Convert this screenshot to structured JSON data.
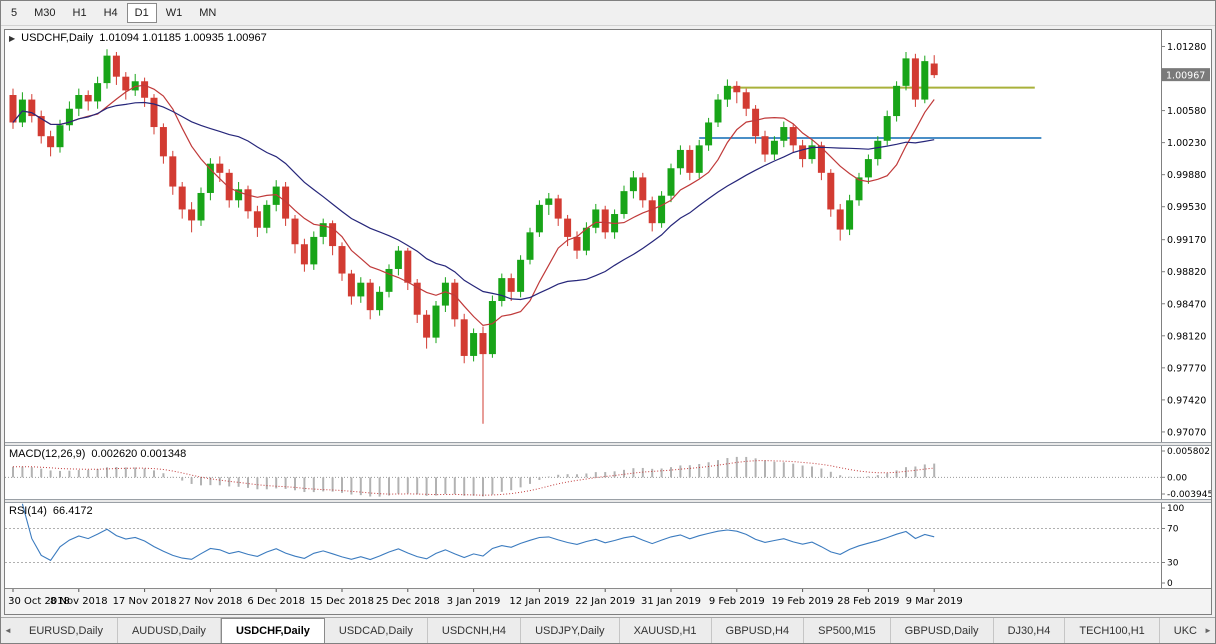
{
  "toolbar": {
    "timeframes": [
      "5",
      "M30",
      "H1",
      "H4",
      "D1",
      "W1",
      "MN"
    ],
    "selected": "D1"
  },
  "chart": {
    "symbol_label": "USDCHF,Daily",
    "ohlc_text": "1.01094 1.01185 1.00935 1.00967"
  },
  "indicators": {
    "macd_label": "MACD(12,26,9)",
    "macd_values": "0.002620 0.001348",
    "rsi_label": "RSI(14)",
    "rsi_value": "66.4172"
  },
  "tabs": {
    "items": [
      "EURUSD,Daily",
      "AUDUSD,Daily",
      "USDCHF,Daily",
      "USDCAD,Daily",
      "USDCNH,H4",
      "USDJPY,Daily",
      "XAUUSD,H1",
      "GBPUSD,H4",
      "SP500,M15",
      "GBPUSD,Daily",
      "DJ30,H4",
      "TECH100,H1",
      "UKC"
    ],
    "active": "USDCHF,Daily"
  },
  "chart_data": {
    "type": "candlestick",
    "symbol": "USDCHF",
    "timeframe": "Daily",
    "current_bar": {
      "open": 1.01094,
      "high": 1.01185,
      "low": 1.00935,
      "close": 1.00967
    },
    "current_price": "1.00967",
    "main_range": [
      0.9696,
      1.0146
    ],
    "y_axis_labels": [
      "1.01280",
      "1.00967",
      "1.00580",
      "1.00230",
      "0.99880",
      "0.99530",
      "0.99170",
      "0.98820",
      "0.98470",
      "0.98120",
      "0.97770",
      "0.97420",
      "0.97070"
    ],
    "x_labels": [
      "30 Oct 2018",
      "8 Nov 2018",
      "17 Nov 2018",
      "27 Nov 2018",
      "6 Dec 2018",
      "15 Dec 2018",
      "25 Dec 2018",
      "3 Jan 2019",
      "12 Jan 2019",
      "22 Jan 2019",
      "31 Jan 2019",
      "9 Feb 2019",
      "19 Feb 2019",
      "28 Feb 2019",
      "9 Mar 2019"
    ],
    "x_label_indices": [
      0,
      7,
      14,
      21,
      28,
      35,
      42,
      49,
      56,
      63,
      70,
      77,
      84,
      91,
      98
    ],
    "colors": {
      "up": "#18a418",
      "down": "#d23b32",
      "ma_fast": "#c03a3a",
      "ma_slow": "#26267a",
      "macd_hist": "#b2b2b2",
      "macd_signal": "#c03a3a",
      "rsi": "#3b7bbf",
      "axis_line": "#808080",
      "price_marker_bg": "#7a7a7a",
      "price_marker_text": "#ffffff"
    },
    "hlines": [
      {
        "price": 1.0083,
        "color": "#a9b13a",
        "start_index": 76,
        "end_index": 108.7
      },
      {
        "price": 1.0028,
        "color": "#4a8fc7",
        "start_index": 73,
        "end_index": 109.4
      }
    ],
    "candles": [
      [
        1.0075,
        1.0082,
        1.0038,
        1.0045
      ],
      [
        1.0045,
        1.0078,
        1.004,
        1.007
      ],
      [
        1.007,
        1.0076,
        1.0045,
        1.0052
      ],
      [
        1.0052,
        1.0058,
        1.0022,
        1.003
      ],
      [
        1.003,
        1.0036,
        1.0008,
        1.0018
      ],
      [
        1.0018,
        1.0048,
        1.0012,
        1.0042
      ],
      [
        1.0042,
        1.0068,
        1.0036,
        1.006
      ],
      [
        1.006,
        1.0082,
        1.0052,
        1.0075
      ],
      [
        1.0075,
        1.008,
        1.0058,
        1.0068
      ],
      [
        1.0068,
        1.0095,
        1.006,
        1.0088
      ],
      [
        1.0088,
        1.0125,
        1.0082,
        1.0118
      ],
      [
        1.0118,
        1.0122,
        1.0086,
        1.0095
      ],
      [
        1.0095,
        1.01,
        1.007,
        1.008
      ],
      [
        1.008,
        1.0098,
        1.0074,
        1.009
      ],
      [
        1.009,
        1.0094,
        1.0062,
        1.0072
      ],
      [
        1.0072,
        1.0076,
        1.0032,
        1.004
      ],
      [
        1.004,
        1.0044,
        1.0,
        1.0008
      ],
      [
        1.0008,
        1.0014,
        0.9966,
        0.9975
      ],
      [
        0.9975,
        0.998,
        0.994,
        0.995
      ],
      [
        0.995,
        0.9958,
        0.9925,
        0.9938
      ],
      [
        0.9938,
        0.9974,
        0.9932,
        0.9968
      ],
      [
        0.9968,
        1.0006,
        0.996,
        1.0
      ],
      [
        1.0,
        1.0008,
        0.998,
        0.999
      ],
      [
        0.999,
        0.9994,
        0.9952,
        0.996
      ],
      [
        0.996,
        0.998,
        0.9952,
        0.9972
      ],
      [
        0.9972,
        0.9976,
        0.994,
        0.9948
      ],
      [
        0.9948,
        0.9954,
        0.992,
        0.993
      ],
      [
        0.993,
        0.996,
        0.9924,
        0.9955
      ],
      [
        0.9955,
        0.9982,
        0.9948,
        0.9975
      ],
      [
        0.9975,
        0.998,
        0.9932,
        0.994
      ],
      [
        0.994,
        0.9944,
        0.9902,
        0.9912
      ],
      [
        0.9912,
        0.9918,
        0.9882,
        0.989
      ],
      [
        0.989,
        0.9926,
        0.9884,
        0.992
      ],
      [
        0.992,
        0.994,
        0.9912,
        0.9935
      ],
      [
        0.9935,
        0.9938,
        0.99,
        0.991
      ],
      [
        0.991,
        0.9914,
        0.9872,
        0.988
      ],
      [
        0.988,
        0.9884,
        0.9846,
        0.9855
      ],
      [
        0.9855,
        0.9876,
        0.9848,
        0.987
      ],
      [
        0.987,
        0.9874,
        0.983,
        0.984
      ],
      [
        0.984,
        0.9866,
        0.9834,
        0.986
      ],
      [
        0.986,
        0.989,
        0.9854,
        0.9885
      ],
      [
        0.9885,
        0.991,
        0.9878,
        0.9905
      ],
      [
        0.9905,
        0.9908,
        0.9862,
        0.987
      ],
      [
        0.987,
        0.9874,
        0.9826,
        0.9835
      ],
      [
        0.9835,
        0.984,
        0.9798,
        0.981
      ],
      [
        0.981,
        0.985,
        0.9804,
        0.9845
      ],
      [
        0.9845,
        0.9876,
        0.9838,
        0.987
      ],
      [
        0.987,
        0.9874,
        0.9822,
        0.983
      ],
      [
        0.983,
        0.9836,
        0.9782,
        0.979
      ],
      [
        0.979,
        0.982,
        0.9784,
        0.9815
      ],
      [
        0.9815,
        0.9822,
        0.9716,
        0.9792
      ],
      [
        0.9792,
        0.9856,
        0.9788,
        0.985
      ],
      [
        0.985,
        0.988,
        0.9844,
        0.9875
      ],
      [
        0.9875,
        0.988,
        0.985,
        0.986
      ],
      [
        0.986,
        0.99,
        0.9854,
        0.9895
      ],
      [
        0.9895,
        0.993,
        0.989,
        0.9925
      ],
      [
        0.9925,
        0.996,
        0.992,
        0.9955
      ],
      [
        0.9955,
        0.9968,
        0.9944,
        0.9962
      ],
      [
        0.9962,
        0.9966,
        0.9932,
        0.994
      ],
      [
        0.994,
        0.9944,
        0.991,
        0.992
      ],
      [
        0.992,
        0.9926,
        0.9896,
        0.9905
      ],
      [
        0.9905,
        0.9936,
        0.99,
        0.993
      ],
      [
        0.993,
        0.9956,
        0.9924,
        0.995
      ],
      [
        0.995,
        0.9954,
        0.9918,
        0.9925
      ],
      [
        0.9925,
        0.995,
        0.9918,
        0.9945
      ],
      [
        0.9945,
        0.9976,
        0.994,
        0.997
      ],
      [
        0.997,
        0.9992,
        0.9962,
        0.9985
      ],
      [
        0.9985,
        0.999,
        0.9952,
        0.996
      ],
      [
        0.996,
        0.9964,
        0.9926,
        0.9935
      ],
      [
        0.9935,
        0.997,
        0.993,
        0.9965
      ],
      [
        0.9965,
        1.0,
        0.9958,
        0.9995
      ],
      [
        0.9995,
        1.002,
        0.9988,
        1.0015
      ],
      [
        1.0015,
        1.002,
        0.9982,
        0.999
      ],
      [
        0.999,
        1.0026,
        0.9984,
        1.002
      ],
      [
        1.002,
        1.005,
        1.0014,
        1.0045
      ],
      [
        1.0045,
        1.0076,
        1.004,
        1.007
      ],
      [
        1.007,
        1.0092,
        1.0062,
        1.0085
      ],
      [
        1.0085,
        1.009,
        1.0066,
        1.0078
      ],
      [
        1.0078,
        1.0082,
        1.0052,
        1.006
      ],
      [
        1.006,
        1.0064,
        1.0022,
        1.003
      ],
      [
        1.003,
        1.0036,
        1.0002,
        1.001
      ],
      [
        1.001,
        1.003,
        1.0004,
        1.0025
      ],
      [
        1.0025,
        1.0046,
        1.0018,
        1.004
      ],
      [
        1.004,
        1.0044,
        1.0012,
        1.002
      ],
      [
        1.002,
        1.0026,
        0.9996,
        1.0005
      ],
      [
        1.0005,
        1.0026,
        1.0,
        1.002
      ],
      [
        1.002,
        1.0024,
        0.9982,
        0.999
      ],
      [
        0.999,
        0.9994,
        0.9942,
        0.995
      ],
      [
        0.995,
        0.9956,
        0.9916,
        0.9928
      ],
      [
        0.9928,
        0.9966,
        0.9922,
        0.996
      ],
      [
        0.996,
        0.999,
        0.9954,
        0.9985
      ],
      [
        0.9985,
        1.001,
        0.9978,
        1.0005
      ],
      [
        1.0005,
        1.003,
        0.9998,
        1.0025
      ],
      [
        1.0025,
        1.0058,
        1.002,
        1.0052
      ],
      [
        1.0052,
        1.009,
        1.0046,
        1.0085
      ],
      [
        1.0085,
        1.0122,
        1.008,
        1.0115
      ],
      [
        1.0115,
        1.012,
        1.0062,
        1.007
      ],
      [
        1.007,
        1.0118,
        1.0066,
        1.0112
      ],
      [
        1.01094,
        1.01185,
        1.00935,
        1.00967
      ]
    ],
    "macd": {
      "range": [
        -0.0045,
        0.0065
      ],
      "axis_labels": [
        "0.005802",
        "0.00",
        "-0.003945"
      ]
    },
    "rsi": {
      "range": [
        0,
        100
      ],
      "axis_labels": [
        "100",
        "70",
        "30",
        "0"
      ],
      "levels": [
        70,
        30
      ]
    }
  }
}
